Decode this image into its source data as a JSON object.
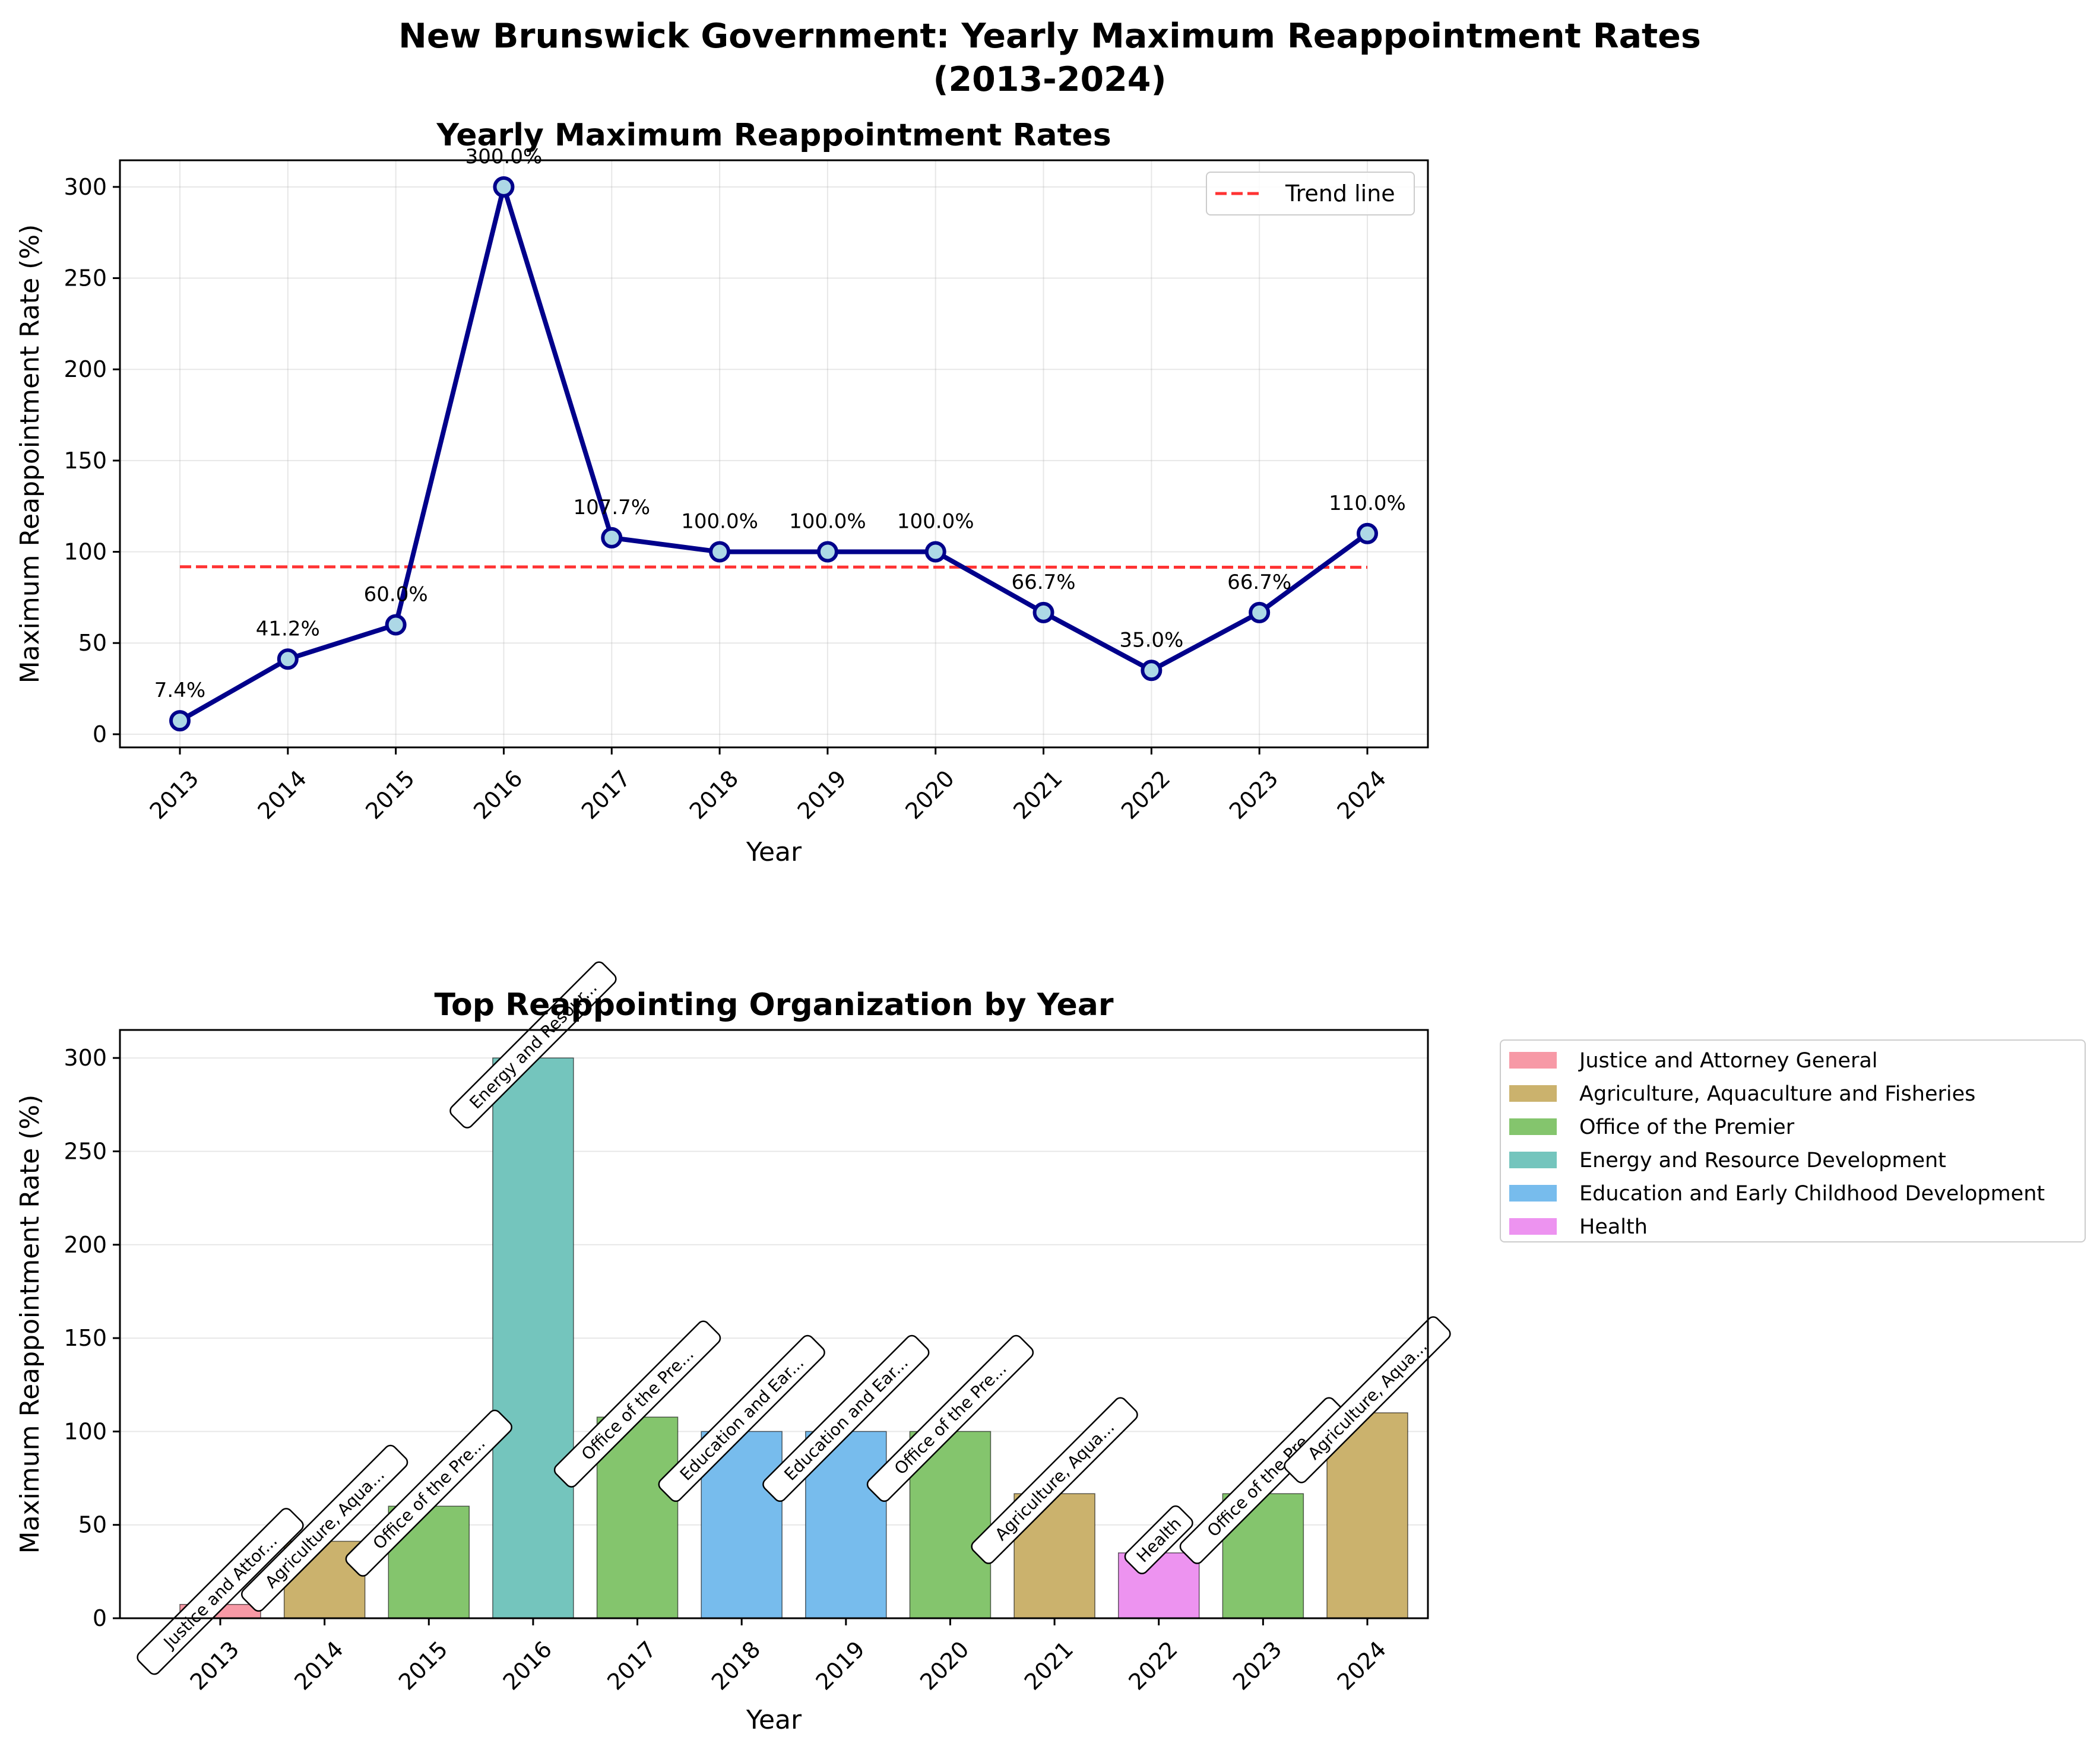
{
  "title_line1": "New Brunswick Government: Yearly Maximum Reappointment Rates",
  "title_line2": "(2013-2024)",
  "chart_data": [
    {
      "type": "line",
      "title": "Yearly Maximum Reappointment Rates",
      "xlabel": "Year",
      "ylabel": "Maximum Reappointment Rate (%)",
      "x": [
        "2013",
        "2014",
        "2015",
        "2016",
        "2017",
        "2018",
        "2019",
        "2020",
        "2021",
        "2022",
        "2023",
        "2024"
      ],
      "values": [
        7.4,
        41.2,
        60.0,
        300.0,
        107.7,
        100.0,
        100.0,
        100.0,
        66.7,
        35.0,
        66.7,
        110.0
      ],
      "labels": [
        "7.4%",
        "41.2%",
        "60.0%",
        "300.0%",
        "107.7%",
        "100.0%",
        "100.0%",
        "100.0%",
        "66.7%",
        "35.0%",
        "66.7%",
        "110.0%"
      ],
      "trend": {
        "name": "Trend line",
        "start": 91.8,
        "end": 91.5,
        "color": "#ff0000"
      },
      "yticks": [
        0,
        50,
        100,
        150,
        200,
        250,
        300
      ],
      "ylim": [
        -7.2,
        314.6
      ],
      "grid": true,
      "legend": "top-right",
      "line_color": "#00008b",
      "marker_color": "#add8e6"
    },
    {
      "type": "bar",
      "title": "Top Reappointing Organization by Year",
      "xlabel": "Year",
      "ylabel": "Maximum Reappointment Rate (%)",
      "categories": [
        "2013",
        "2014",
        "2015",
        "2016",
        "2017",
        "2018",
        "2019",
        "2020",
        "2021",
        "2022",
        "2023",
        "2024"
      ],
      "values": [
        7.4,
        41.2,
        60.0,
        300.0,
        107.7,
        100.0,
        100.0,
        100.0,
        66.7,
        35.0,
        66.7,
        110.0
      ],
      "orgs": [
        0,
        1,
        2,
        3,
        2,
        4,
        4,
        2,
        1,
        5,
        2,
        1
      ],
      "annotations": [
        "Justice and Attor...",
        "Agriculture, Aqua...",
        "Office of the Pre...",
        "Energy and Resour...",
        "Office of the Pre...",
        "Education and Ear...",
        "Education and Ear...",
        "Office of the Pre...",
        "Agriculture, Aqua...",
        "Health",
        "Office of the Pre...",
        "Agriculture, Aqua..."
      ],
      "legend_entries": [
        {
          "name": "Justice and Attorney General",
          "color": "#f799a6"
        },
        {
          "name": "Agriculture, Aquaculture and Fisheries",
          "color": "#cbb26d"
        },
        {
          "name": "Office of the Premier",
          "color": "#84c56d"
        },
        {
          "name": "Energy and Resource Development",
          "color": "#74c5bd"
        },
        {
          "name": "Education and Early Childhood Development",
          "color": "#77bced"
        },
        {
          "name": "Health",
          "color": "#ed93f0"
        }
      ],
      "yticks": [
        0,
        50,
        100,
        150,
        200,
        250,
        300
      ],
      "ylim": [
        0,
        315
      ],
      "grid": true,
      "legend": "outside-right"
    }
  ]
}
